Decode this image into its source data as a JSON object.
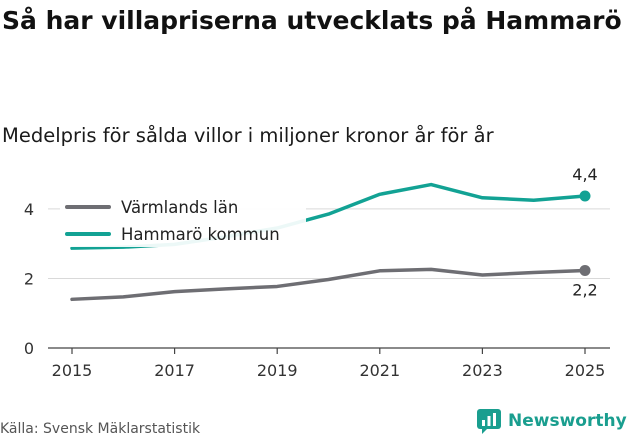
{
  "header": {
    "title": "Så har villapriserna utvecklats på Hammarö",
    "subtitle": "Medelpris för sålda villor i miljoner kronor år för år"
  },
  "footer": {
    "source": "Källa: Svensk Mäklarstatistik",
    "brand": "Newsworthy"
  },
  "colors": {
    "varmland": "#6e6e73",
    "hammaro": "#12a294",
    "grid": "#d9d9d9",
    "brand": "#1a9e8f"
  },
  "chart_data": {
    "type": "line",
    "title": "Så har villapriserna utvecklats på Hammarö",
    "subtitle": "Medelpris för sålda villor i miljoner kronor år för år",
    "xlabel": "",
    "ylabel": "",
    "x": [
      2015,
      2016,
      2017,
      2018,
      2019,
      2020,
      2021,
      2022,
      2023,
      2024,
      2025
    ],
    "x_ticks": [
      "2015",
      "2017",
      "2019",
      "2021",
      "2023",
      "2025"
    ],
    "y_ticks": [
      "0",
      "2",
      "4"
    ],
    "xlim": [
      2015,
      2025
    ],
    "ylim": [
      0,
      4.5
    ],
    "grid": true,
    "legend_position": "top-left",
    "series": [
      {
        "name": "Värmlands län",
        "color_key": "varmland",
        "values": [
          1.4,
          1.47,
          1.62,
          1.7,
          1.77,
          1.97,
          2.22,
          2.26,
          2.1,
          2.17,
          2.23
        ],
        "end_label": "2,2"
      },
      {
        "name": "Hammarö kommun",
        "color_key": "hammaro",
        "values": [
          2.87,
          2.9,
          2.98,
          3.2,
          3.45,
          3.85,
          4.42,
          4.7,
          4.32,
          4.25,
          4.37
        ],
        "end_label": "4,4"
      }
    ]
  }
}
